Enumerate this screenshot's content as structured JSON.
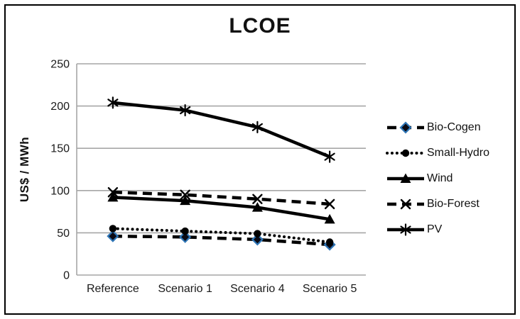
{
  "chart_data": {
    "type": "line",
    "title": "LCOE",
    "ylabel": "US$ / MWh",
    "xlabel": "",
    "categories": [
      "Reference",
      "Scenario 1",
      "Scenario 4",
      "Scenario 5"
    ],
    "ylim": [
      0,
      250
    ],
    "yticks": [
      0,
      50,
      100,
      150,
      200,
      250
    ],
    "grid": true,
    "legend_position": "right",
    "series": [
      {
        "name": "Bio-Cogen",
        "values": [
          46,
          45,
          42,
          36
        ],
        "line_style": "dashed",
        "marker": "diamond",
        "color": "#000000",
        "marker_fill": "#0a0a14",
        "marker_stroke": "#2e75b6"
      },
      {
        "name": "Small-Hydro",
        "values": [
          55,
          52,
          49,
          39
        ],
        "line_style": "dotted",
        "marker": "circle",
        "color": "#000000"
      },
      {
        "name": "Wind",
        "values": [
          92,
          88,
          80,
          66
        ],
        "line_style": "solid",
        "marker": "triangle",
        "color": "#000000"
      },
      {
        "name": "Bio-Forest",
        "values": [
          98,
          95,
          90,
          84
        ],
        "line_style": "dashed",
        "marker": "x",
        "color": "#000000"
      },
      {
        "name": "PV",
        "values": [
          204,
          195,
          175,
          140
        ],
        "line_style": "solid",
        "marker": "asterisk",
        "color": "#000000"
      }
    ],
    "colors": {
      "grid": "#a6a6a6",
      "axis": "#a6a6a6",
      "text": "#1a1a1a",
      "line": "#000000",
      "diamond_stroke": "#2e75b6"
    }
  }
}
